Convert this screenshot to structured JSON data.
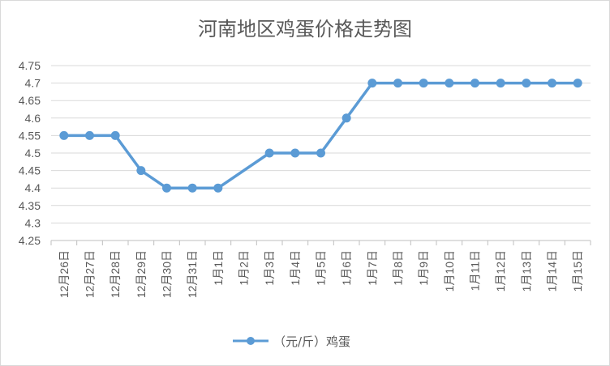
{
  "chart_data": {
    "type": "line",
    "title": "河南地区鸡蛋价格走势图",
    "categories": [
      "12月26日",
      "12月27日",
      "12月28日",
      "12月29日",
      "12月30日",
      "12月31日",
      "1月1日",
      "1月2日",
      "1月3日",
      "1月4日",
      "1月5日",
      "1月6日",
      "1月7日",
      "1月8日",
      "1月9日",
      "1月10日",
      "1月11日",
      "1月12日",
      "1月13日",
      "1月14日",
      "1月15日"
    ],
    "series": [
      {
        "name": "（元/斤）鸡蛋",
        "color": "#5b9bd5",
        "values": [
          4.55,
          4.55,
          4.55,
          4.45,
          4.4,
          4.4,
          4.4,
          null,
          4.5,
          4.5,
          4.5,
          4.6,
          4.7,
          4.7,
          4.7,
          4.7,
          4.7,
          4.7,
          4.7,
          4.7,
          4.7
        ]
      }
    ],
    "ylim": [
      4.25,
      4.75
    ],
    "yticks": [
      "4.25",
      "4.3",
      "4.35",
      "4.4",
      "4.45",
      "4.5",
      "4.55",
      "4.6",
      "4.65",
      "4.7",
      "4.75"
    ],
    "grid": true,
    "legend": "bottom",
    "xlabel": "",
    "ylabel": ""
  }
}
